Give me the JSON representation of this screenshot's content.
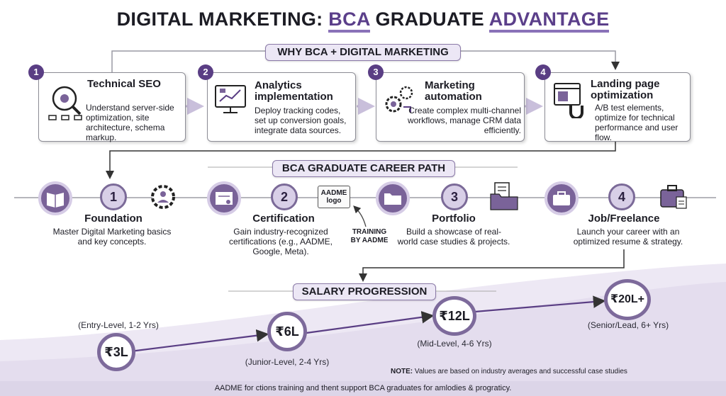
{
  "title": {
    "part1": "DIGITAL MARKETING: ",
    "part2": "BCA",
    "part3": " GRADUATE ",
    "part4": "ADVANTAGE"
  },
  "why_banner": "WHY BCA + DIGITAL MARKETING",
  "skills": [
    {
      "num": "1",
      "title": "Technical SEO",
      "text": "Understand server-side optimization, site architecture, schema markup.",
      "icon": "seo-gear-magnifier-icon"
    },
    {
      "num": "2",
      "title": "Analytics implementation",
      "text": "Deploy tracking codes, set up conversion goals, integrate data sources.",
      "icon": "analytics-monitor-icon"
    },
    {
      "num": "3",
      "title": "Marketing automation",
      "text": "Create complex multi-channel workflows, manage CRM data efficiently.",
      "icon": "automation-gears-icon"
    },
    {
      "num": "4",
      "title": "Landing page optimization",
      "text": "A/B test elements, optimize for technical performance and user flow.",
      "icon": "landing-page-magnet-icon"
    }
  ],
  "career_banner": "BCA GRADUATE CAREER PATH",
  "steps": [
    {
      "num": "1",
      "title": "Foundation",
      "text": "Master Digital Marketing basics and key concepts.",
      "icon": "book-icon",
      "side_icon": "gear-person-icon"
    },
    {
      "num": "2",
      "title": "Certification",
      "text": "Gain industry-recognized certifications (e.g., AADME, Google, Meta).",
      "icon": "certificate-icon",
      "side_icon": "aadme-logo-badge"
    },
    {
      "num": "3",
      "title": "Portfolio",
      "text": "Build a showcase of real-world case studies & projects.",
      "icon": "folder-icon",
      "side_icon": "document-folder-icon"
    },
    {
      "num": "4",
      "title": "Job/Freelance",
      "text": "Launch your career with an optimized resume & strategy.",
      "icon": "briefcase-icon",
      "side_icon": "briefcase-resume-icon"
    }
  ],
  "aadme_logo": {
    "line1": "AADME",
    "line2": "logo"
  },
  "training_label": {
    "line1": "TRAINING",
    "line2": "BY AADME"
  },
  "salary_banner": "SALARY PROGRESSION",
  "salary": [
    {
      "value": "₹3L",
      "label": "(Entry-Level, 1-2 Yrs)"
    },
    {
      "value": "₹6L",
      "label": "(Junior-Level, 2-4 Yrs)"
    },
    {
      "value": "₹12L",
      "label": "(Mid-Level, 4-6 Yrs)"
    },
    {
      "value": "₹20L+",
      "label": "(Senior/Lead, 6+ Yrs)"
    }
  ],
  "note": {
    "bold": "NOTE:",
    "text": " Values are based on industry averages and successful case studies"
  },
  "footer": "AADME for ctions training and thent support BCA graduates for amlodies & prograticy.",
  "colors": {
    "accent": "#5a3e84",
    "light": "#ece7f5",
    "footer": "#dcd5e8"
  }
}
